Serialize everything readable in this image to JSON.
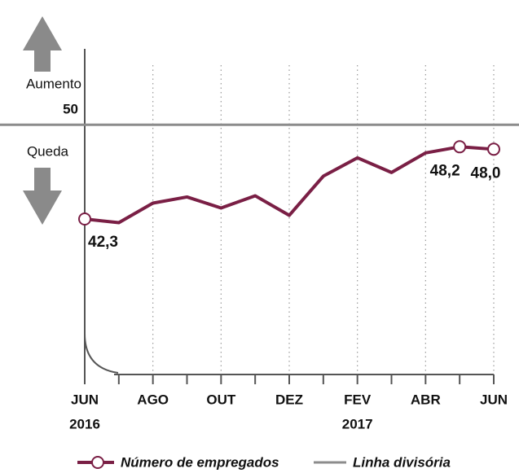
{
  "chart_data": {
    "type": "line",
    "categories": [
      "JUN",
      null,
      "AGO",
      null,
      "OUT",
      null,
      "DEZ",
      null,
      "FEV",
      null,
      "ABR",
      null,
      "JUN"
    ],
    "year_labels": [
      "2016",
      null,
      null,
      null,
      null,
      null,
      null,
      null,
      "2017",
      null,
      null,
      null,
      null
    ],
    "series": [
      {
        "name": "Número de empregados",
        "color": "#7a1f45",
        "values": [
          42.3,
          42.0,
          43.6,
          44.1,
          43.2,
          44.2,
          42.6,
          45.8,
          47.3,
          46.1,
          47.7,
          48.2,
          48.0
        ],
        "value_labels": [
          "42,3",
          null,
          null,
          null,
          null,
          null,
          null,
          null,
          null,
          null,
          null,
          "48,2",
          "48,0"
        ]
      }
    ],
    "divider": {
      "name": "Linha divisória",
      "color": "#8c8c8c"
    },
    "annotations": {
      "up": "Aumento",
      "down": "Queda"
    },
    "ylim": [
      29.6,
      56.2
    ],
    "yticks": [
      50
    ]
  }
}
